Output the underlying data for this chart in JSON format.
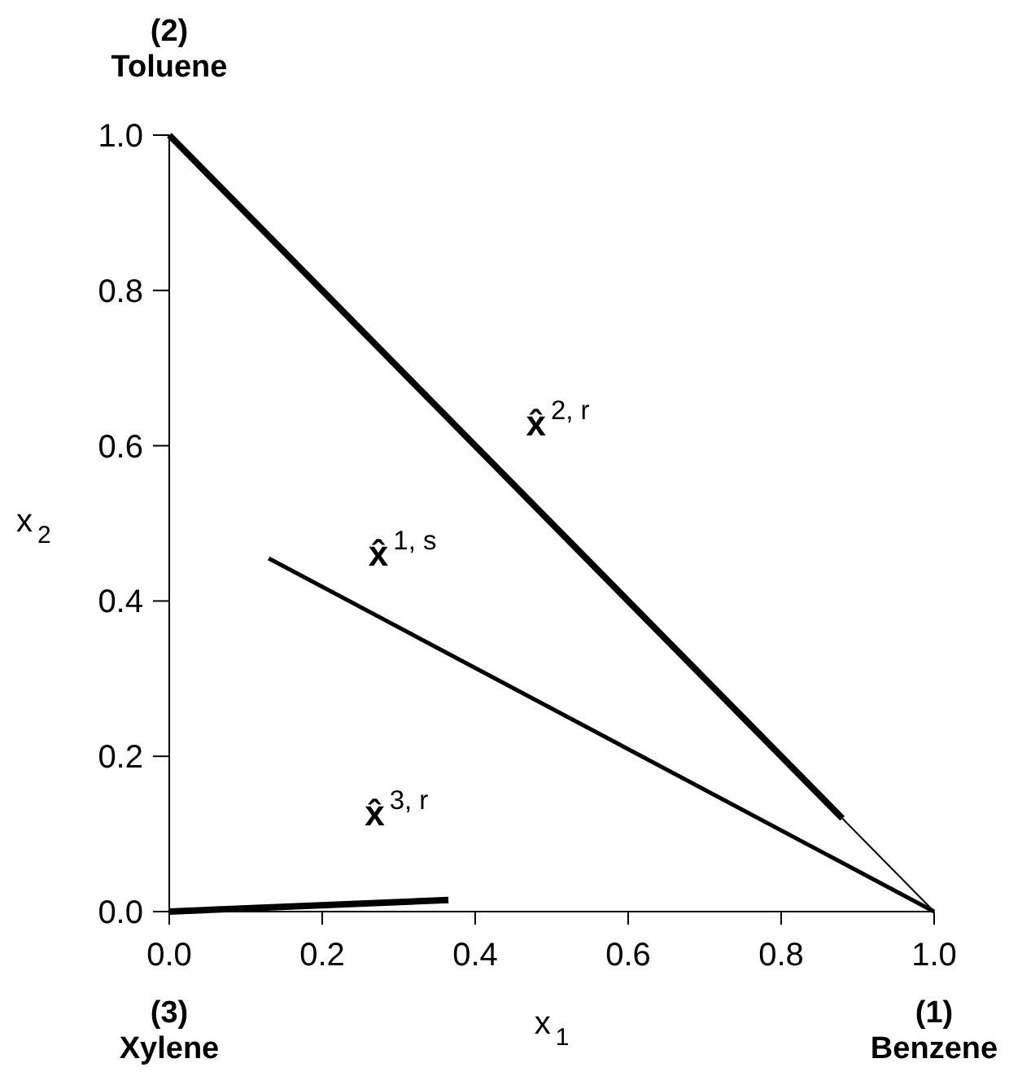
{
  "chart_data": {
    "type": "line",
    "xlabel": "x$_{1}$",
    "ylabel": "x$_{2}$",
    "xlim": [
      0,
      1
    ],
    "ylim": [
      0,
      1
    ],
    "xticks": [
      {
        "value": 0,
        "label": "0.0"
      },
      {
        "value": 0.2,
        "label": "0.2"
      },
      {
        "value": 0.4,
        "label": "0.4"
      },
      {
        "value": 0.6,
        "label": "0.6"
      },
      {
        "value": 0.8,
        "label": "0.8"
      },
      {
        "value": 1,
        "label": "1.0"
      }
    ],
    "yticks": [
      {
        "value": 0,
        "label": "0.0"
      },
      {
        "value": 0.2,
        "label": "0.2"
      },
      {
        "value": 0.4,
        "label": "0.4"
      },
      {
        "value": 0.6,
        "label": "0.6"
      },
      {
        "value": 0.8,
        "label": "0.8"
      },
      {
        "value": 1,
        "label": "1.0"
      }
    ],
    "series": [
      {
        "name": "x̂$^{2, r}$",
        "color": "#000000",
        "x": [
          0,
          0.88
        ],
        "values": [
          1,
          0.12
        ]
      },
      {
        "color": "#000000",
        "x": [
          0.88,
          1
        ],
        "values": [
          0.12,
          0
        ]
      },
      {
        "name": "x̂$^{1, s}$",
        "color": "#000000",
        "x": [
          0.13,
          1
        ],
        "values": [
          0.455,
          0
        ]
      },
      {
        "name": "x̂$^{3, r}$",
        "color": "#000000",
        "x": [
          0,
          0.365
        ],
        "values": [
          0,
          0.015
        ]
      }
    ],
    "annotations": [
      "(2)\nToluene",
      "(3)\nXylene",
      "(1)\nBenzene"
    ]
  }
}
